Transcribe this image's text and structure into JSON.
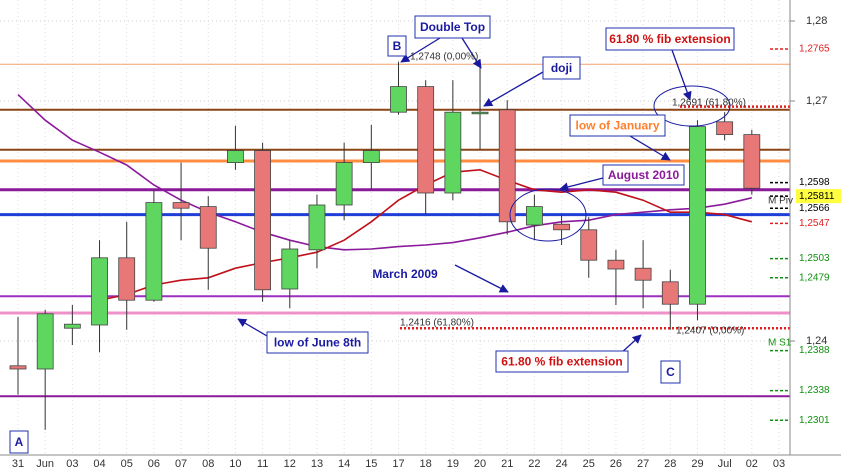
{
  "chart_data": {
    "type": "candlestick",
    "categories": [
      "31",
      "Jun",
      "03",
      "04",
      "05",
      "06",
      "07",
      "08",
      "10",
      "11",
      "12",
      "13",
      "14",
      "15",
      "17",
      "18",
      "19",
      "20",
      "21",
      "22",
      "24",
      "25",
      "26",
      "27",
      "28",
      "29",
      "Jul",
      "02",
      "03"
    ],
    "open": [
      1.2369,
      1.2365,
      1.2416,
      1.242,
      1.2504,
      1.2451,
      1.2573,
      1.2568,
      1.2623,
      1.2638,
      1.2465,
      1.2514,
      1.257,
      1.2623,
      1.2686,
      1.2718,
      1.2585,
      1.2684,
      1.2689,
      1.2545,
      1.2546,
      1.2539,
      1.2501,
      1.2491,
      1.2474,
      1.2446,
      1.2674,
      1.2658,
      null
    ],
    "high": [
      1.243,
      1.2439,
      1.2445,
      1.2526,
      1.2549,
      1.2589,
      1.2623,
      1.2581,
      1.2669,
      1.2648,
      1.2526,
      1.2583,
      1.2648,
      1.267,
      1.2749,
      1.2726,
      1.2726,
      1.2746,
      1.2701,
      1.2583,
      1.2558,
      1.2555,
      1.2514,
      1.2526,
      1.2489,
      1.2676,
      1.2686,
      1.2664,
      null
    ],
    "low": [
      1.2333,
      1.2289,
      1.2395,
      1.2386,
      1.2414,
      1.2449,
      1.2526,
      1.2464,
      1.2614,
      1.2449,
      1.2441,
      1.2491,
      1.2551,
      1.2589,
      1.2683,
      1.2558,
      1.2576,
      1.2639,
      1.2533,
      1.2526,
      1.252,
      1.2479,
      1.2445,
      1.2441,
      1.2414,
      1.2426,
      1.2651,
      1.2583,
      null
    ],
    "close": [
      1.2365,
      1.2434,
      1.2421,
      1.2504,
      1.2451,
      1.2573,
      1.2566,
      1.2516,
      1.2638,
      1.2464,
      1.2515,
      1.257,
      1.2623,
      1.2638,
      1.2718,
      1.2585,
      1.2686,
      1.2686,
      1.2549,
      1.2568,
      1.2539,
      1.2501,
      1.249,
      1.2476,
      1.2446,
      1.2668,
      1.2658,
      1.2591,
      null
    ],
    "up_color": "#5fd65f",
    "down_color": "#e87878",
    "series": [
      {
        "color": "#8b1a9b",
        "values": [
          1.2708,
          1.2676,
          1.2651,
          1.2636,
          1.262,
          1.2595,
          1.2576,
          1.2561,
          1.2549,
          1.2536,
          1.2526,
          1.2518,
          1.2514,
          1.2515,
          1.2518,
          1.252,
          1.2523,
          1.2529,
          1.2536,
          1.2544,
          1.2549,
          1.2551,
          1.2558,
          1.2561,
          1.2564,
          1.2566,
          1.2571,
          1.2579,
          null
        ]
      },
      {
        "color": "#c0101a",
        "values": [
          null,
          null,
          null,
          1.2451,
          1.2458,
          1.247,
          1.2476,
          1.2479,
          1.2491,
          1.2498,
          1.2504,
          1.2511,
          1.2526,
          1.2549,
          1.2576,
          1.2595,
          1.2611,
          1.2614,
          1.2601,
          1.2589,
          1.2586,
          1.2589,
          1.2586,
          1.2576,
          1.2561,
          1.2561,
          1.2558,
          1.2549,
          null
        ]
      }
    ],
    "levels": [
      {
        "value": 1.2746,
        "color": "#f4a070"
      },
      {
        "value": 1.2689,
        "color": "#8b4513"
      },
      {
        "value": 1.2639,
        "color": "#8b4513"
      },
      {
        "value": 1.2625,
        "color": "#ff8c40"
      },
      {
        "value": 1.2589,
        "color": "#8b1a9b"
      },
      {
        "value": 1.2558,
        "color": "#1f3fd6"
      },
      {
        "value": 1.2456,
        "color": "#9b30c0"
      },
      {
        "value": 1.2435,
        "color": "#f090c8"
      },
      {
        "value": 1.2331,
        "color": "#8b1a9b"
      },
      {
        "value": 1.2416,
        "color": "#e02020",
        "dotted": true
      },
      {
        "value": 1.2693,
        "color": "#e02020",
        "dotted": true
      }
    ],
    "ylim": [
      1.22575,
      1.282625
    ],
    "yticks": [
      {
        "value": 1.28,
        "label": "1,28"
      },
      {
        "value": 1.27,
        "label": "1,27"
      },
      {
        "value": 1.24,
        "label": "1,24"
      }
    ],
    "grid": true,
    "price_labels": [
      {
        "value": 1.2765,
        "label": "1,2765",
        "color": "#e02020"
      },
      {
        "value": 1.2598,
        "label": "1,2598",
        "color": "#000000"
      },
      {
        "value": 1.25811,
        "label": "1,25811",
        "color": "#000000",
        "highlight": "#ffff40"
      },
      {
        "value": 1.2566,
        "label": "1,2566",
        "color": "#000000"
      },
      {
        "value": 1.2547,
        "label": "1,2547",
        "color": "#e02020"
      },
      {
        "value": 1.2503,
        "label": "1,2503",
        "color": "#109010"
      },
      {
        "value": 1.2479,
        "label": "1,2479",
        "color": "#109010"
      },
      {
        "value": 1.2388,
        "label": "1,2388",
        "color": "#109010"
      },
      {
        "value": 1.2338,
        "label": "1,2338",
        "color": "#109010"
      },
      {
        "value": 1.2301,
        "label": "1,2301",
        "color": "#109010"
      }
    ],
    "annotations": [
      {
        "text": "Double Top",
        "color": "#1a1aa0"
      },
      {
        "text": "B",
        "color": "#1a1aa0"
      },
      {
        "text": "doji",
        "color": "#1a1aa0"
      },
      {
        "text": "61.80 % fib extension",
        "color": "#d01010"
      },
      {
        "text": "low of January",
        "color": "#ff8030"
      },
      {
        "text": "August 2010",
        "color": "#8b1a9b"
      },
      {
        "text": "March 2009",
        "color": "#1a1aa0"
      },
      {
        "text": "low of June 8th",
        "color": "#1a1aa0"
      },
      {
        "text": "61.80 % fib extension",
        "color": "#d01010"
      },
      {
        "text": "C",
        "color": "#1a1aa0"
      },
      {
        "text": "A",
        "color": "#1a1aa0"
      },
      {
        "text": "1,2748 (0,00%)",
        "color": "#333333"
      },
      {
        "text": "1,2691 (61,80%)",
        "color": "#333333"
      },
      {
        "text": "1,2416 (61,80%)",
        "color": "#333333"
      },
      {
        "text": "1,2407 (0,00%)",
        "color": "#333333"
      },
      {
        "text": "M Piv",
        "color": "#333333"
      },
      {
        "text": "M S1",
        "color": "#109010"
      }
    ]
  }
}
